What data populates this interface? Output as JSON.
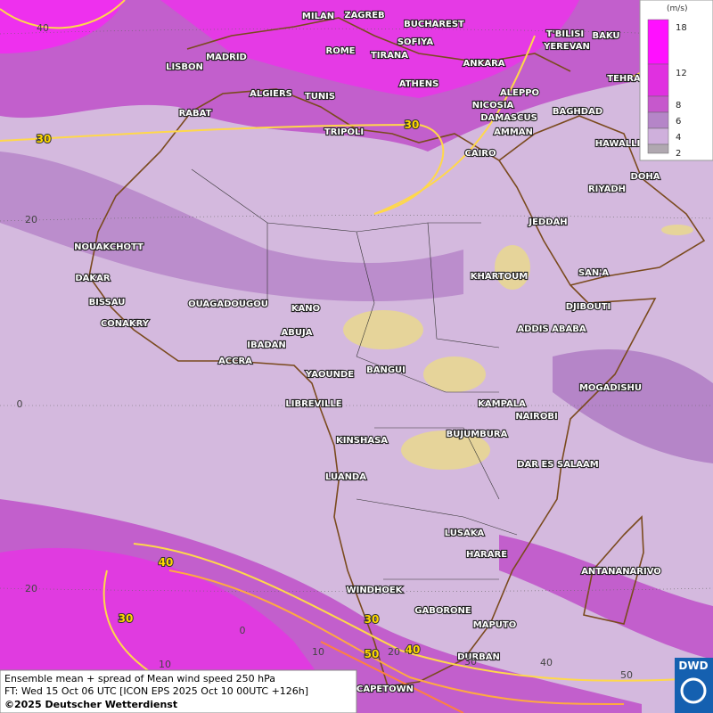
{
  "map": {
    "cities": [
      "MILAN",
      "ZAGREB",
      "BUCHAREST",
      "T'BILISI",
      "BAKU",
      "YEREVAN",
      "MADRID",
      "ROME",
      "SOFIYA",
      "TIRANA",
      "ANKARA",
      "LISBON",
      "TEHRA",
      "ATHENS",
      "ALGIERS",
      "TUNIS",
      "ALEPPO",
      "RABAT",
      "NICOSIA",
      "BAGHDAD",
      "TRIPOLI",
      "DAMASCUS",
      "AMMAN",
      "HAWALLI",
      "CAIRO",
      "DOHA",
      "RIYADH",
      "JEDDAH",
      "NOUAKCHOTT",
      "SAN'A",
      "DAKAR",
      "KHARTOUM",
      "BISSAU",
      "OUAGADOUGOU",
      "DJIBOUTI",
      "KANO",
      "CONAKRY",
      "ABUJA",
      "ADDIS ABABA",
      "IBADAN",
      "ACCRA",
      "BANGUI",
      "YAOUNDE",
      "MOGADISHU",
      "LIBREVILLE",
      "KAMPALA",
      "NAIROBI",
      "KINSHASA",
      "BUJUMBURA",
      "DAR ES SALAAM",
      "LUANDA",
      "LUSAKA",
      "HARARE",
      "ANTANANARIVO",
      "WINDHOEK",
      "GABORONE",
      "MAPUTO",
      "DURBAN",
      "CAPETOWN"
    ],
    "contour_labels": [
      30,
      30,
      40,
      30,
      30,
      40,
      50
    ],
    "lat_labels": [
      40,
      20,
      0,
      20
    ],
    "lon_labels": [
      10,
      0,
      10,
      20,
      30,
      40,
      50
    ],
    "legend": {
      "unit": "(m/s)",
      "levels": [
        18,
        12,
        8,
        6,
        4,
        2
      ],
      "colors": [
        "#ff10ff",
        "#e030e0",
        "#c658cc",
        "#b585c8",
        "#cfb0dc",
        "#b0a8b0"
      ]
    },
    "footer": {
      "line1": "Ensemble mean + spread of Mean wind speed 250 hPa",
      "line2": "FT: Wed 15 Oct 06 UTC [ICON EPS 2025 Oct 10 00UTC +126h]",
      "line3": "©2025 Deutscher Wetterdienst"
    },
    "logo": "DWD"
  }
}
